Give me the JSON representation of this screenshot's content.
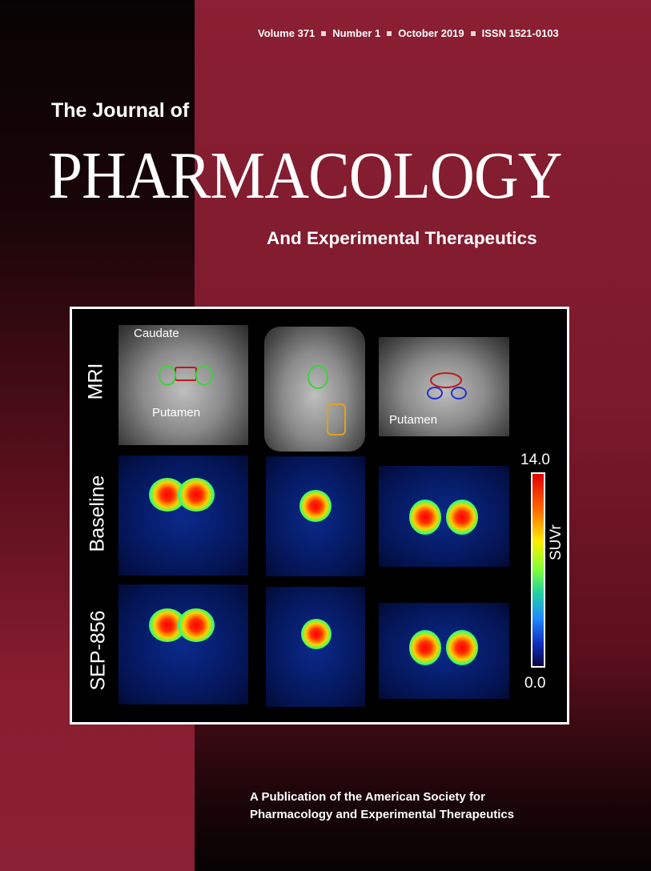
{
  "header": {
    "volume": "Volume 371",
    "number": "Number 1",
    "date": "October 2019",
    "issn": "ISSN 1521-0103"
  },
  "title": {
    "prefix": "The Journal of",
    "main": "PHARMACOLOGY",
    "subtitle": "And Experimental Therapeutics"
  },
  "figure": {
    "rows": [
      "MRI",
      "Baseline",
      "SEP-856"
    ],
    "annotations": {
      "caudate": "Caudate",
      "putamen_1": "Putamen",
      "putamen_2": "Putamen"
    },
    "scale": {
      "max": "14.0",
      "min": "0.0",
      "label": "SUVr"
    }
  },
  "footer": {
    "line1": "A Publication of the American Society for",
    "line2": "Pharmacology and Experimental Therapeutics"
  },
  "colors": {
    "maroon": "#8b1f33",
    "dark": "#070304"
  }
}
